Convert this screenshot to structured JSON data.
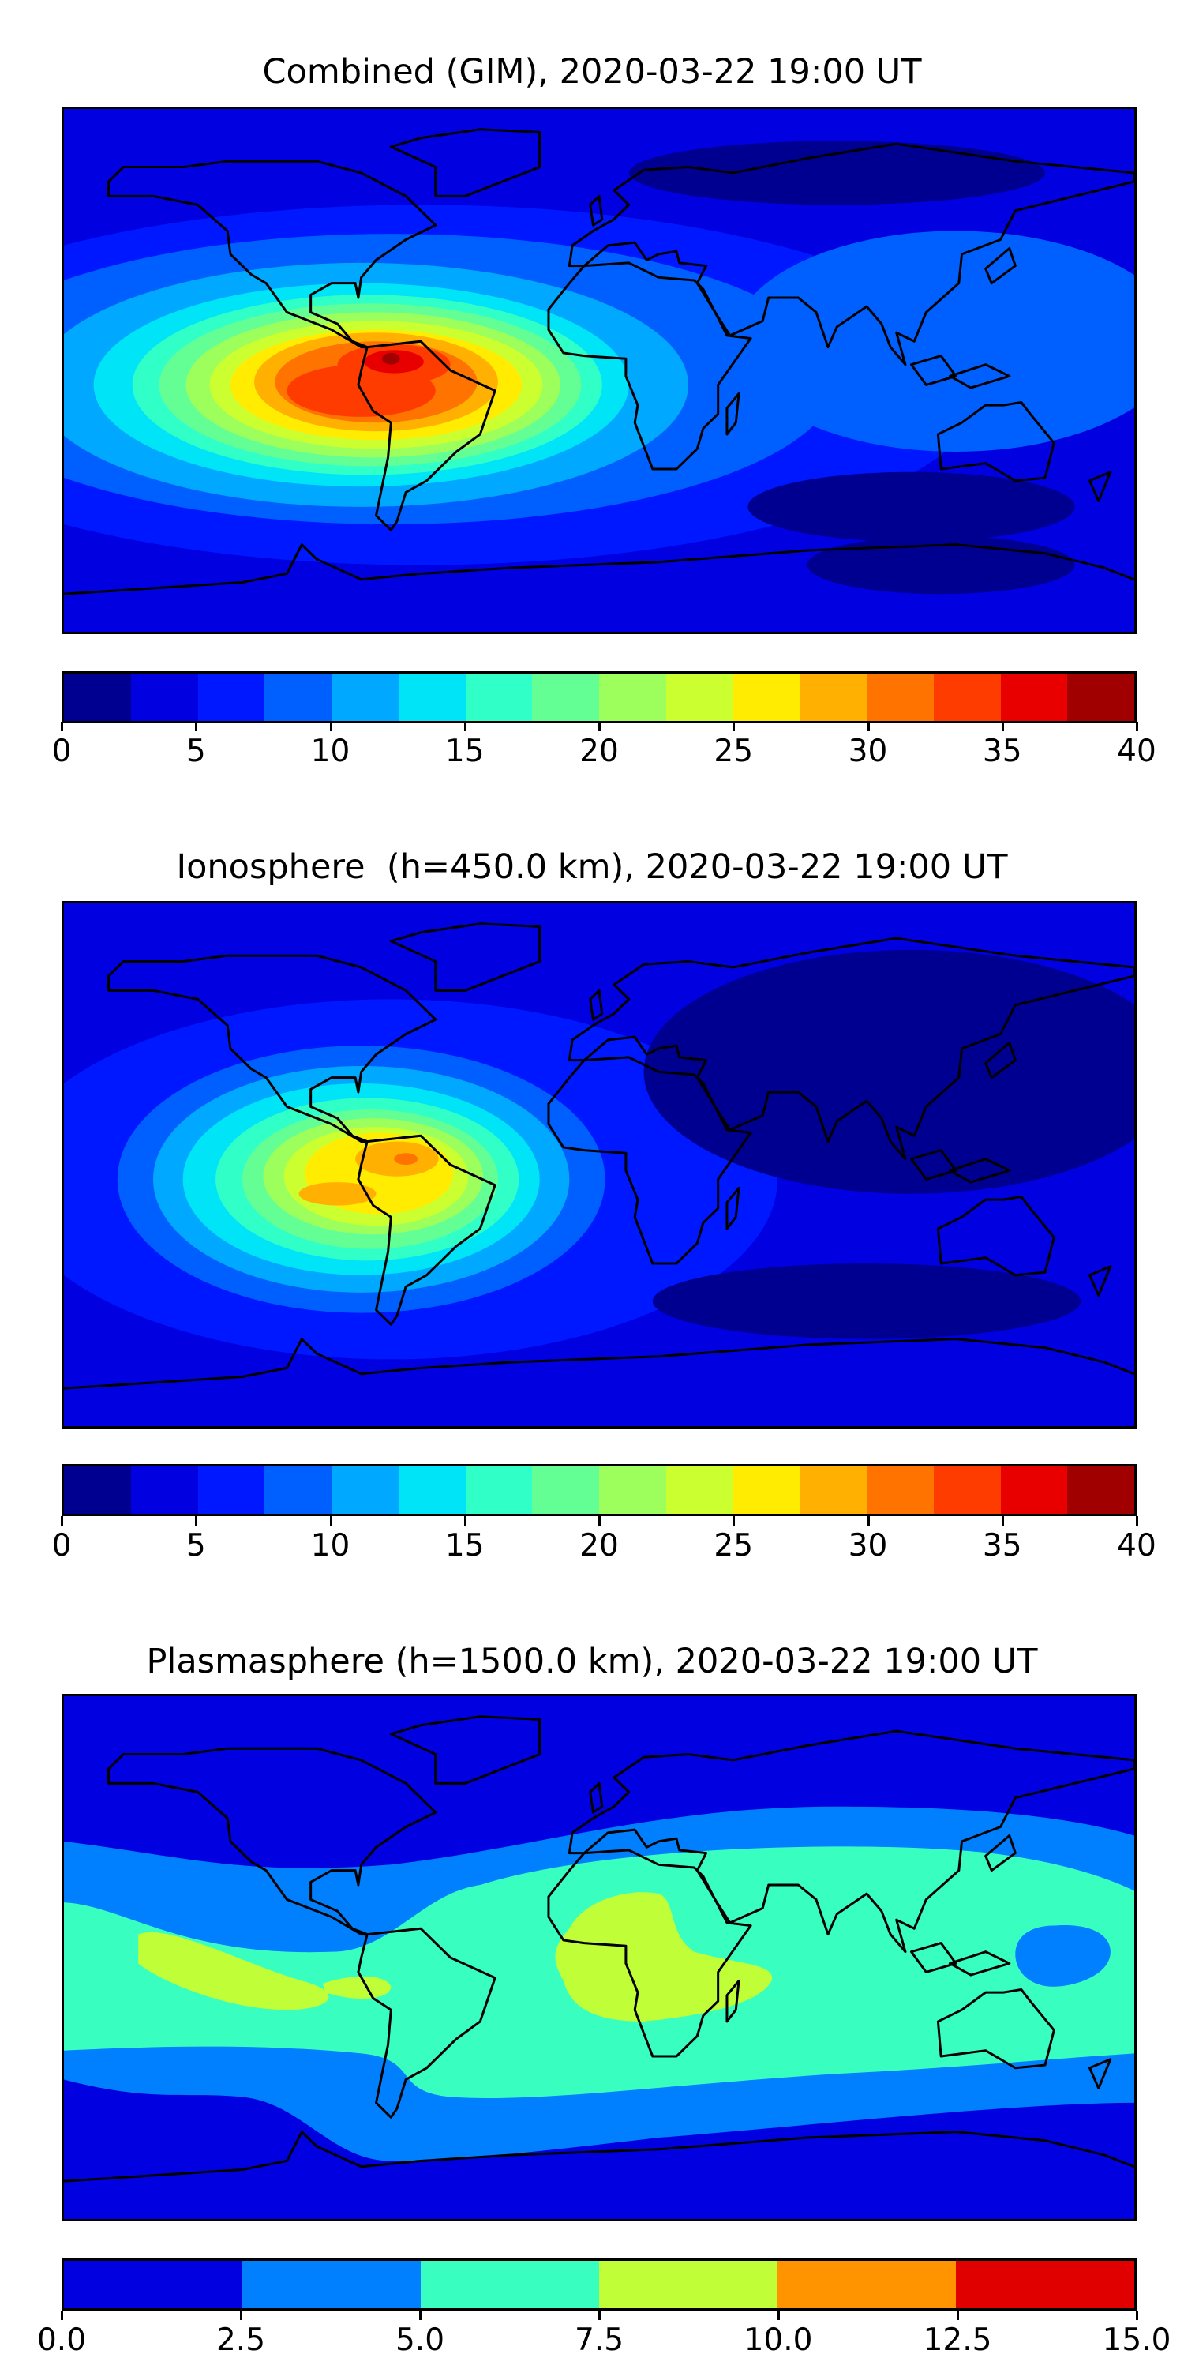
{
  "panels": [
    {
      "title": "Combined (GIM), 2020-03-22 19:00 UT"
    },
    {
      "title": "Ionosphere  (h=450.0 km), 2020-03-22 19:00 UT"
    },
    {
      "title": "Plasmasphere (h=1500.0 km), 2020-03-22 19:00 UT"
    }
  ],
  "chart_data": [
    {
      "type": "heatmap",
      "title": "Combined (GIM), 2020-03-22 19:00 UT",
      "description_of_field": "filled contour map",
      "colorbar": {
        "range": [
          0,
          40
        ],
        "levels": [
          0,
          2.5,
          5,
          7.5,
          10,
          12.5,
          15,
          17.5,
          20,
          22.5,
          25,
          27.5,
          30,
          32.5,
          35,
          37.5,
          40
        ],
        "tick_labels": [
          "0",
          "5",
          "10",
          "15",
          "20",
          "25",
          "30",
          "35",
          "40"
        ],
        "tick_values": [
          0,
          5,
          10,
          15,
          20,
          25,
          30,
          35,
          40
        ],
        "colors": [
          "#000090",
          "#0000e0",
          "#0018ff",
          "#0060ff",
          "#00a8ff",
          "#00e4f8",
          "#30ffc8",
          "#64ff94",
          "#9cff5c",
          "#ccff30",
          "#ffec00",
          "#ffb000",
          "#ff7400",
          "#ff3c00",
          "#e80000",
          "#a00000"
        ]
      },
      "peak_region": "South America / eastern Pacific, max level 37.5-40"
    },
    {
      "type": "heatmap",
      "title": "Ionosphere  (h=450.0 km), 2020-03-22 19:00 UT",
      "colorbar": {
        "range": [
          0,
          40
        ],
        "levels": [
          0,
          2.5,
          5,
          7.5,
          10,
          12.5,
          15,
          17.5,
          20,
          22.5,
          25,
          27.5,
          30,
          32.5,
          35,
          37.5,
          40
        ],
        "tick_labels": [
          "0",
          "5",
          "10",
          "15",
          "20",
          "25",
          "30",
          "35",
          "40"
        ],
        "tick_values": [
          0,
          5,
          10,
          15,
          20,
          25,
          30,
          35,
          40
        ],
        "colors": [
          "#000090",
          "#0000e0",
          "#0018ff",
          "#0060ff",
          "#00a8ff",
          "#00e4f8",
          "#30ffc8",
          "#64ff94",
          "#9cff5c",
          "#ccff30",
          "#ffec00",
          "#ffb000",
          "#ff7400",
          "#ff3c00",
          "#e80000",
          "#a00000"
        ]
      },
      "peak_region": "northern South America, max level 30-32.5"
    },
    {
      "type": "heatmap",
      "title": "Plasmasphere (h=1500.0 km), 2020-03-22 19:00 UT",
      "colorbar": {
        "range": [
          0,
          15
        ],
        "levels": [
          0,
          2.5,
          5,
          7.5,
          10,
          12.5,
          15
        ],
        "tick_labels": [
          "0.0",
          "2.5",
          "5.0",
          "7.5",
          "10.0",
          "12.5",
          "15.0"
        ],
        "tick_values": [
          0,
          2.5,
          5,
          7.5,
          10,
          12.5,
          15
        ],
        "colors": [
          "#0000e0",
          "#0080ff",
          "#38ffc0",
          "#c0ff38",
          "#ff9400",
          "#e00000"
        ]
      },
      "peak_region": "Africa and eastern Pacific, max level 7.5-10"
    }
  ]
}
